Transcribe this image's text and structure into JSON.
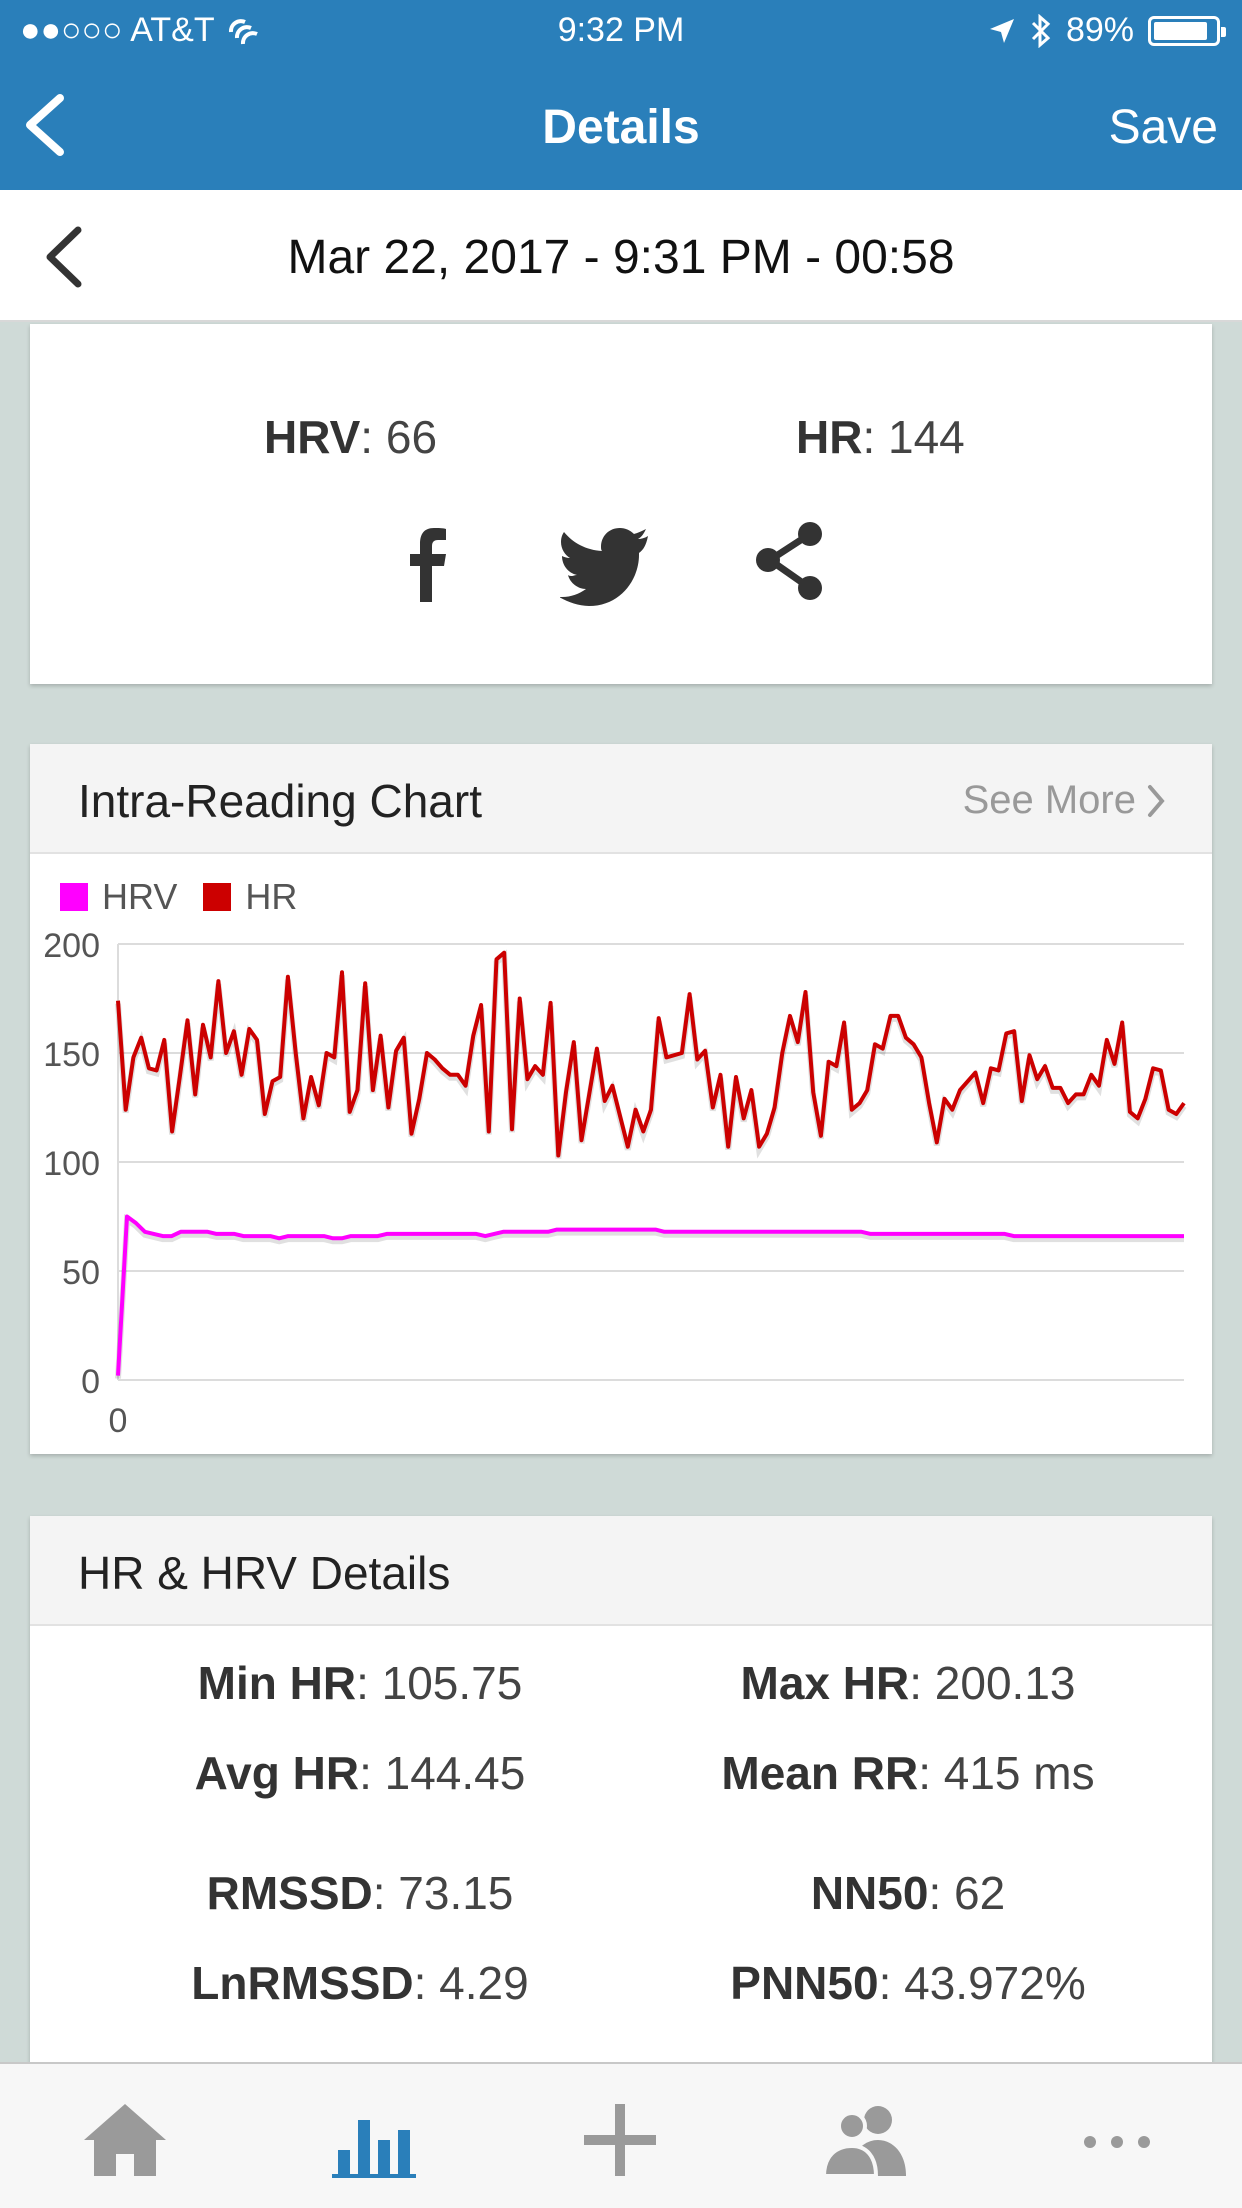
{
  "status_bar": {
    "carrier": "●●○○○ AT&T",
    "time": "9:32 PM",
    "battery": "89%",
    "battery_level": 0.89
  },
  "nav": {
    "title": "Details",
    "save_label": "Save"
  },
  "reading": {
    "datetime": "Mar 22, 2017 - 9:31 PM - 00:58"
  },
  "summary": {
    "hrv_label": "HRV",
    "hrv_value": ": 66",
    "hr_label": "HR",
    "hr_value": ": 144",
    "share_icons": [
      "facebook-icon",
      "twitter-icon",
      "share-icon"
    ]
  },
  "chart_card": {
    "title": "Intra-Reading Chart",
    "see_more": "See More"
  },
  "chart_data": {
    "type": "line",
    "legend": [
      "HRV",
      "HR"
    ],
    "ylim": [
      0,
      200
    ],
    "y_ticks": [
      "200",
      "150",
      "100",
      "50",
      "0"
    ],
    "x_ticks": [
      "0"
    ],
    "grid": true,
    "legend_position": "top-left",
    "colors": {
      "HRV": "#ff00ff",
      "HR": "#cc0000"
    },
    "series": [
      {
        "name": "HR",
        "values": [
          174,
          124,
          148,
          157,
          143,
          142,
          156,
          114,
          139,
          165,
          131,
          163,
          148,
          183,
          150,
          160,
          140,
          161,
          156,
          122,
          137,
          139,
          185,
          150,
          120,
          139,
          126,
          150,
          148,
          187,
          123,
          133,
          182,
          133,
          158,
          125,
          151,
          157,
          113,
          129,
          150,
          147,
          143,
          140,
          140,
          135,
          158,
          172,
          114,
          193,
          196,
          115,
          175,
          138,
          144,
          140,
          173,
          103,
          132,
          155,
          110,
          131,
          152,
          128,
          135,
          121,
          107,
          124,
          114,
          124,
          166,
          148,
          149,
          150,
          177,
          147,
          151,
          125,
          140,
          107,
          139,
          120,
          133,
          107,
          113,
          125,
          150,
          167,
          155,
          178,
          132,
          112,
          146,
          144,
          164,
          124,
          127,
          133,
          154,
          152,
          167,
          167,
          157,
          154,
          148,
          127,
          109,
          129,
          124,
          133,
          137,
          141,
          127,
          143,
          142,
          159,
          160,
          128,
          149,
          138,
          144,
          134,
          134,
          127,
          131,
          131,
          140,
          135,
          156,
          145,
          164,
          123,
          120,
          129,
          143,
          142,
          124,
          122,
          127
        ]
      },
      {
        "name": "HRV",
        "values": [
          2,
          75,
          72,
          68,
          67,
          66,
          66,
          68,
          68,
          68,
          68,
          67,
          67,
          67,
          66,
          66,
          66,
          66,
          65,
          66,
          66,
          66,
          66,
          66,
          65,
          65,
          66,
          66,
          66,
          66,
          67,
          67,
          67,
          67,
          67,
          67,
          67,
          67,
          67,
          67,
          67,
          66,
          67,
          68,
          68,
          68,
          68,
          68,
          68,
          69,
          69,
          69,
          69,
          69,
          69,
          69,
          69,
          69,
          69,
          69,
          69,
          68,
          68,
          68,
          68,
          68,
          68,
          68,
          68,
          68,
          68,
          68,
          68,
          68,
          68,
          68,
          68,
          68,
          68,
          68,
          68,
          68,
          68,
          68,
          67,
          67,
          67,
          67,
          67,
          67,
          67,
          67,
          67,
          67,
          67,
          67,
          67,
          67,
          67,
          67,
          66,
          66,
          66,
          66,
          66,
          66,
          66,
          66,
          66,
          66,
          66,
          66,
          66,
          66,
          66,
          66,
          66,
          66,
          66,
          66
        ]
      }
    ]
  },
  "details_card": {
    "title": "HR & HRV Details",
    "rows": [
      {
        "left_label": "Min HR",
        "left_value": ": 105.75",
        "right_label": "Max HR",
        "right_value": ": 200.13"
      },
      {
        "left_label": "Avg HR",
        "left_value": ": 144.45",
        "right_label": "Mean RR",
        "right_value": ": 415 ms"
      },
      {
        "left_label": "RMSSD",
        "left_value": ": 73.15",
        "right_label": "NN50",
        "right_value": ": 62"
      },
      {
        "left_label": "LnRMSSD",
        "left_value": ": 4.29",
        "right_label": "PNN50",
        "right_value": ": 43.972%"
      }
    ]
  },
  "tab_bar": {
    "tabs": [
      "home-icon",
      "stats-icon",
      "add-icon",
      "people-icon",
      "more-icon"
    ],
    "active_color": "#2a7fba",
    "inactive_color": "#9a9a9a"
  }
}
